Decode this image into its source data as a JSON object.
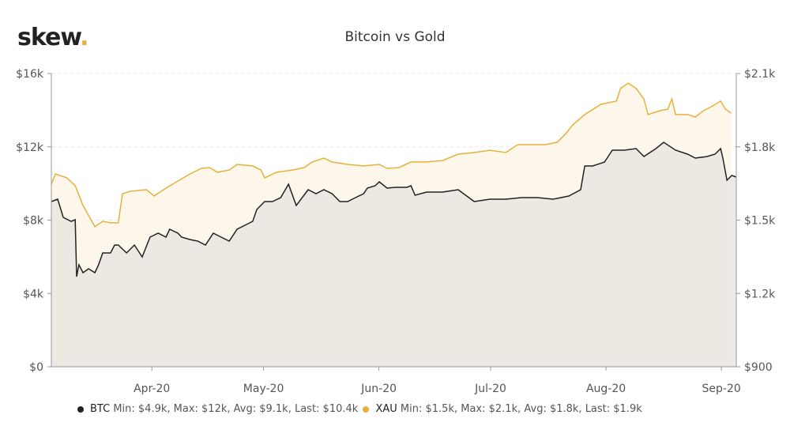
{
  "logo": "skew",
  "chart_data": {
    "type": "line",
    "title": "Bitcoin vs Gold",
    "x_unit": "days since 2020-03-05",
    "x_range": [
      0,
      184
    ],
    "x_ticks": [
      {
        "day": 27,
        "label": "Apr-20"
      },
      {
        "day": 57,
        "label": "May-20"
      },
      {
        "day": 88,
        "label": "Jun-20"
      },
      {
        "day": 118,
        "label": "Jul-20"
      },
      {
        "day": 149,
        "label": "Aug-20"
      },
      {
        "day": 180,
        "label": "Sep-20"
      }
    ],
    "y_left": {
      "range": [
        0,
        16000
      ],
      "ticks": [
        {
          "v": 0,
          "label": "$0"
        },
        {
          "v": 4000,
          "label": "$4k"
        },
        {
          "v": 8000,
          "label": "$8k"
        },
        {
          "v": 12000,
          "label": "$12k"
        },
        {
          "v": 16000,
          "label": "$16k"
        }
      ]
    },
    "y_right": {
      "range": [
        900,
        2100
      ],
      "ticks": [
        {
          "v": 900,
          "label": "$900"
        },
        {
          "v": 1200,
          "label": "$1.2k"
        },
        {
          "v": 1500,
          "label": "$1.5k"
        },
        {
          "v": 1800,
          "label": "$1.8k"
        },
        {
          "v": 2100,
          "label": "$2.1k"
        }
      ]
    },
    "series": [
      {
        "name": "BTC",
        "axis": "left",
        "color": "#222222",
        "fill": "#e9e6e2",
        "x": [
          0,
          1.7,
          3.2,
          5.3,
          6.4,
          6.8,
          7.4,
          8.5,
          10,
          11.7,
          12.7,
          13.8,
          15.9,
          17,
          18,
          20.2,
          22.3,
          24.4,
          26.5,
          28.7,
          30.8,
          31.8,
          34,
          35,
          37.2,
          39.3,
          41.4,
          43.5,
          45.6,
          47.8,
          49.9,
          52,
          54.1,
          55.2,
          57.3,
          59.4,
          61.6,
          63.7,
          65.8,
          69,
          71.1,
          73.2,
          75.4,
          77.5,
          79.6,
          81.7,
          83.9,
          84.9,
          87,
          88.1,
          90.2,
          92.4,
          95.5,
          96.6,
          97.7,
          100.8,
          105.1,
          109.3,
          113.6,
          117.8,
          122.1,
          126.3,
          130.6,
          134.8,
          139,
          142.2,
          143.3,
          145.4,
          148.6,
          150.7,
          153.9,
          157.1,
          159.2,
          162.4,
          164.5,
          167.7,
          170.9,
          173,
          176.2,
          178.3,
          179.8,
          180.4,
          181.5,
          182.8,
          184
        ],
        "values": [
          9014,
          9144,
          8152,
          7936,
          8022,
          4917,
          5564,
          5132,
          5348,
          5132,
          5564,
          6211,
          6211,
          6642,
          6642,
          6211,
          6642,
          5995,
          7073,
          7289,
          7073,
          7505,
          7289,
          7073,
          6944,
          6858,
          6642,
          7289,
          7073,
          6858,
          7505,
          7720,
          7936,
          8583,
          9014,
          9014,
          9230,
          9963,
          8799,
          9661,
          9446,
          9661,
          9446,
          9014,
          9014,
          9230,
          9446,
          9747,
          9877,
          10092,
          9747,
          9791,
          9791,
          9877,
          9359,
          9532,
          9532,
          9661,
          9014,
          9144,
          9144,
          9230,
          9230,
          9144,
          9316,
          9661,
          10955,
          10955,
          11171,
          11818,
          11818,
          11904,
          11473,
          11904,
          12249,
          11818,
          11602,
          11386,
          11473,
          11602,
          11904,
          11386,
          10179,
          10437,
          10351
        ],
        "legend": {
          "label": "BTC",
          "stats": "Min: $4.9k, Max: $12k, Avg: $9.1k, Last: $10.4k"
        }
      },
      {
        "name": "XAU",
        "axis": "right",
        "color": "#e6b13a",
        "fill": "#fdf6ea",
        "x": [
          0,
          1.1,
          4.2,
          6.4,
          8.5,
          11.7,
          13.8,
          15.9,
          18,
          19.1,
          21.2,
          25.5,
          27.6,
          30.8,
          32.9,
          37.2,
          40.3,
          42.5,
          44.6,
          47.8,
          49.9,
          54.1,
          56.3,
          57.3,
          60.5,
          64.8,
          67.9,
          70.1,
          73.2,
          75.4,
          79.6,
          83.9,
          88.1,
          90.2,
          93.4,
          96.6,
          100.8,
          105.1,
          109.3,
          113.6,
          117.8,
          122.1,
          125.3,
          128.5,
          132.7,
          135.9,
          138,
          140.1,
          143.3,
          147.6,
          151.8,
          152.9,
          155,
          157.1,
          159.2,
          160.3,
          163.5,
          165.6,
          166.7,
          167.7,
          171,
          173,
          175.2,
          177.3,
          179.8,
          181.1,
          182.6
        ],
        "values": [
          1647,
          1689,
          1673,
          1641,
          1560,
          1473,
          1495,
          1489,
          1489,
          1608,
          1618,
          1625,
          1599,
          1631,
          1650,
          1689,
          1712,
          1715,
          1696,
          1705,
          1728,
          1722,
          1705,
          1673,
          1696,
          1705,
          1715,
          1738,
          1754,
          1738,
          1728,
          1722,
          1728,
          1712,
          1715,
          1738,
          1738,
          1744,
          1770,
          1777,
          1786,
          1777,
          1809,
          1809,
          1809,
          1819,
          1851,
          1890,
          1932,
          1974,
          1987,
          2039,
          2061,
          2039,
          1996,
          1932,
          1948,
          1954,
          1996,
          1932,
          1932,
          1922,
          1948,
          1964,
          1987,
          1954,
          1938
        ],
        "legend": {
          "label": "XAU",
          "stats": "Min: $1.5k, Max: $2.1k, Avg: $1.8k, Last: $1.9k"
        }
      }
    ]
  }
}
